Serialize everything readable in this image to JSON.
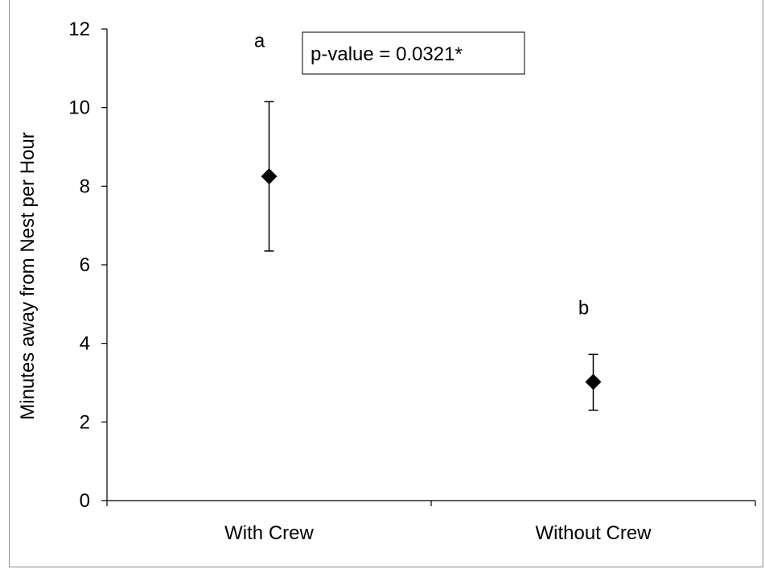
{
  "chart_data": {
    "type": "scatter",
    "title": "",
    "xlabel": "",
    "ylabel": "Minutes away from Nest per Hour",
    "ylim": [
      0,
      12
    ],
    "yticks": [
      "0",
      "2",
      "4",
      "6",
      "8",
      "10",
      "12"
    ],
    "categories": [
      "With Crew",
      "Without Crew"
    ],
    "series": [
      {
        "values": [
          8.25,
          3.02
        ],
        "error_low": [
          6.35,
          2.3
        ],
        "error_high": [
          10.15,
          3.72
        ],
        "marker": "diamond",
        "color": "#000000"
      }
    ],
    "annotations": [
      "a",
      "b"
    ],
    "pvalue_text": "p-value = 0.0321*",
    "grid": false,
    "legend": "none"
  }
}
